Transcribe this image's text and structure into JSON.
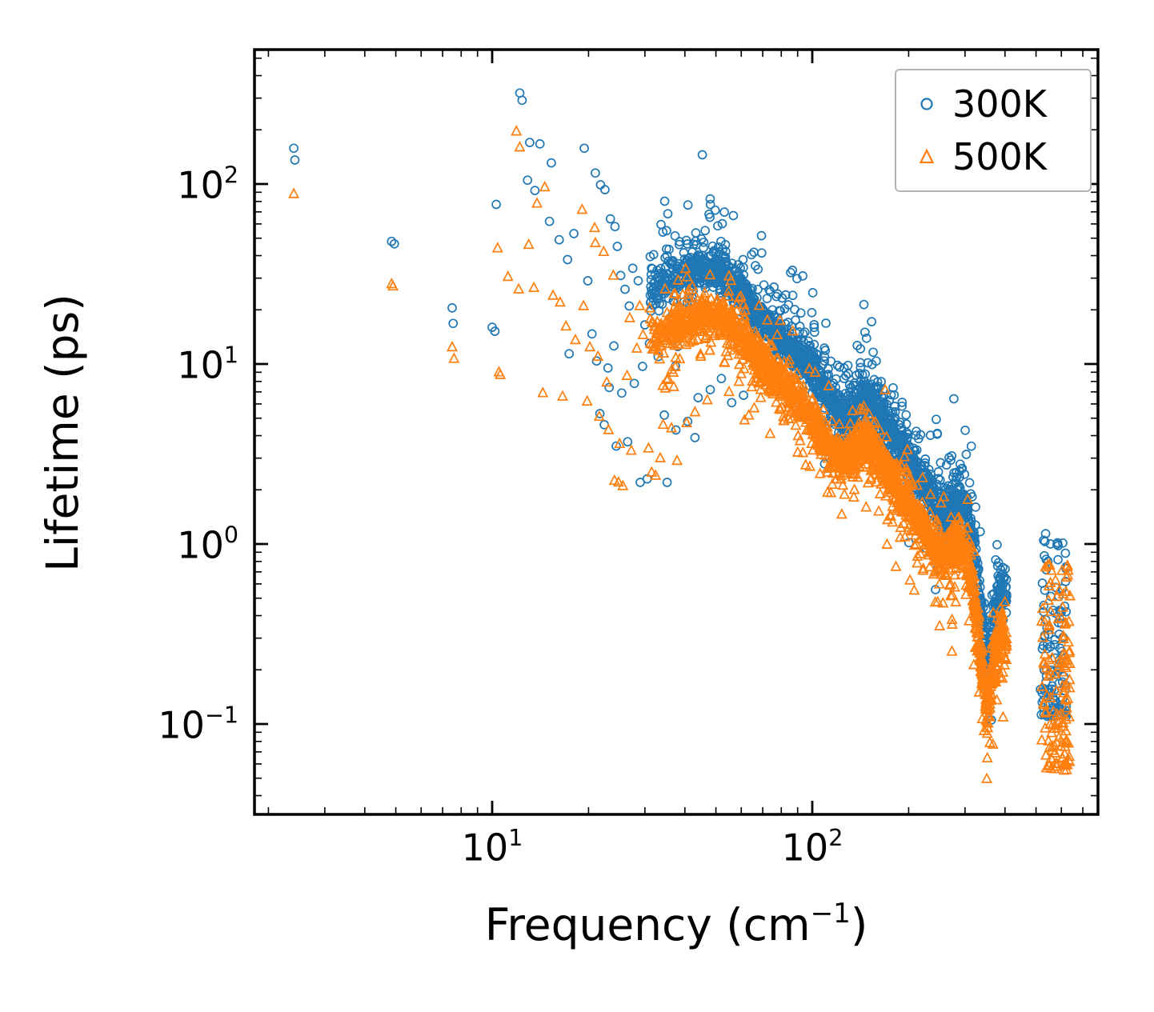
{
  "figure": {
    "background": "#ffffff",
    "frame_color": "#000000"
  },
  "axes": {
    "x": {
      "label_pre": "Frequency (cm",
      "label_sup": "−1",
      "label_post": ")",
      "scale": "log",
      "ticks": [
        {
          "value": 10,
          "base": "10",
          "exp": "1"
        },
        {
          "value": 100,
          "base": "10",
          "exp": "2"
        }
      ]
    },
    "y": {
      "label": "Lifetime (ps)",
      "scale": "log",
      "ticks": [
        {
          "value": 0.1,
          "base": "10",
          "exp": "−1"
        },
        {
          "value": 1,
          "base": "10",
          "exp": "0"
        },
        {
          "value": 10,
          "base": "10",
          "exp": "1"
        },
        {
          "value": 100,
          "base": "10",
          "exp": "2"
        }
      ]
    }
  },
  "legend": {
    "items": [
      {
        "label": "300K",
        "marker": "circle",
        "color": "#1f77b4"
      },
      {
        "label": "500K",
        "marker": "triangle",
        "color": "#ff7f0e"
      }
    ]
  },
  "chart_data": {
    "type": "scatter",
    "title": "",
    "xlabel": "Frequency (cm⁻¹)",
    "ylabel": "Lifetime (ps)",
    "xscale": "log",
    "yscale": "log",
    "xlim": [
      1.81,
      780
    ],
    "ylim": [
      0.032,
      560
    ],
    "grid": false,
    "legend_position": "upper right",
    "series": [
      {
        "name": "300K",
        "marker": "circle",
        "color": "#1f77b4",
        "seed": 7,
        "isolated_points": [
          [
            2.4,
            158
          ],
          [
            2.42,
            136
          ],
          [
            4.85,
            48
          ],
          [
            4.95,
            46.5
          ],
          [
            7.5,
            20.5
          ],
          [
            7.55,
            16.8
          ],
          [
            10.0,
            16.0
          ],
          [
            10.2,
            15.2
          ],
          [
            10.3,
            77
          ],
          [
            12.2,
            320
          ],
          [
            12.4,
            292
          ],
          [
            13.1,
            170
          ],
          [
            14.1,
            167
          ],
          [
            15.3,
            131
          ],
          [
            12.9,
            105
          ],
          [
            13.6,
            92
          ],
          [
            15.1,
            62
          ],
          [
            16.2,
            49
          ],
          [
            17.2,
            38
          ],
          [
            18.0,
            53
          ],
          [
            19.4,
            158
          ],
          [
            21.0,
            115
          ],
          [
            21.8,
            99
          ],
          [
            22.5,
            93
          ],
          [
            19.9,
            29
          ],
          [
            20.5,
            14.7
          ],
          [
            17.4,
            11.4
          ],
          [
            21.2,
            10.4
          ],
          [
            23.0,
            9.5
          ],
          [
            24.0,
            12.6
          ],
          [
            24.6,
            45
          ],
          [
            25.2,
            31
          ],
          [
            26.0,
            26
          ],
          [
            26.8,
            21
          ],
          [
            23.4,
            64
          ],
          [
            24.2,
            58
          ],
          [
            27.5,
            34
          ],
          [
            28.6,
            29
          ],
          [
            21.7,
            5.3
          ],
          [
            22.4,
            4.6
          ],
          [
            24.4,
            3.5
          ],
          [
            26.5,
            3.7
          ],
          [
            29.0,
            2.2
          ],
          [
            30.5,
            2.3
          ],
          [
            25.4,
            6.9
          ],
          [
            27.8,
            7.8
          ],
          [
            29.5,
            9.7
          ],
          [
            23.2,
            7.4
          ],
          [
            31,
            13
          ],
          [
            33,
            11
          ],
          [
            36,
            18
          ],
          [
            38,
            12.5
          ],
          [
            30,
            16.5
          ],
          [
            34.5,
            5.2
          ],
          [
            37.5,
            4.3
          ],
          [
            35.2,
            2.2
          ],
          [
            40.8,
            4.8
          ],
          [
            44,
            6.5
          ],
          [
            43,
            3.9
          ],
          [
            48,
            7.2
          ],
          [
            52,
            8.3
          ],
          [
            56,
            6.1
          ],
          [
            61,
            6.7
          ]
        ],
        "band": {
          "x_range": [
            31,
            405
          ],
          "count": 2300,
          "x_bias": 0.82,
          "core_sd": 0.055,
          "halo_sd": 0.17,
          "halo_frac": 0.22,
          "halo_shift": 0.06,
          "trend": [
            [
              31,
              26
            ],
            [
              38,
              30
            ],
            [
              46,
              34
            ],
            [
              52,
              33
            ],
            [
              58,
              27
            ],
            [
              66,
              20
            ],
            [
              74,
              15.5
            ],
            [
              82,
              13
            ],
            [
              90,
              11.5
            ],
            [
              100,
              10
            ],
            [
              108,
              7.5
            ],
            [
              118,
              5.6
            ],
            [
              128,
              5.2
            ],
            [
              140,
              6.2
            ],
            [
              152,
              6.6
            ],
            [
              163,
              5.2
            ],
            [
              178,
              4.0
            ],
            [
              195,
              3.1
            ],
            [
              212,
              2.5
            ],
            [
              230,
              1.9
            ],
            [
              250,
              1.55
            ],
            [
              268,
              1.5
            ],
            [
              285,
              1.85
            ],
            [
              300,
              1.6
            ],
            [
              315,
              1.15
            ],
            [
              330,
              0.6
            ],
            [
              342,
              0.32
            ],
            [
              352,
              0.17
            ],
            [
              362,
              0.28
            ],
            [
              375,
              0.45
            ],
            [
              388,
              0.58
            ],
            [
              398,
              0.55
            ],
            [
              405,
              0.5
            ]
          ]
        },
        "cluster": {
          "x_range": [
            515,
            622
          ],
          "y_range": [
            0.11,
            1.25
          ],
          "count": 115,
          "low_bias": 1.7
        }
      },
      {
        "name": "500K",
        "marker": "triangle",
        "color": "#ff7f0e",
        "seed": 13,
        "isolated_points": [
          [
            2.4,
            88
          ],
          [
            4.85,
            27.8
          ],
          [
            4.9,
            27
          ],
          [
            7.5,
            12.4
          ],
          [
            7.6,
            10.7
          ],
          [
            10.5,
            9.0
          ],
          [
            10.6,
            8.7
          ],
          [
            11.9,
            196
          ],
          [
            12.2,
            160
          ],
          [
            10.4,
            44
          ],
          [
            11.2,
            30.5
          ],
          [
            12.1,
            26
          ],
          [
            13.0,
            46
          ],
          [
            13.8,
            78
          ],
          [
            14.6,
            96
          ],
          [
            15.5,
            24
          ],
          [
            16.3,
            22
          ],
          [
            13.5,
            26.5
          ],
          [
            17.0,
            16.2
          ],
          [
            18.2,
            13.6
          ],
          [
            19.3,
            21
          ],
          [
            20.2,
            12.4
          ],
          [
            21.4,
            11
          ],
          [
            16.6,
            6.6
          ],
          [
            14.4,
            6.9
          ],
          [
            19.8,
            6.2
          ],
          [
            21.6,
            5.1
          ],
          [
            23.1,
            4.3
          ],
          [
            25.0,
            3.6
          ],
          [
            27.2,
            3.3
          ],
          [
            24.1,
            2.25
          ],
          [
            25.6,
            2.1
          ],
          [
            24.8,
            2.2
          ],
          [
            31.5,
            2.5
          ],
          [
            32.4,
            2.4
          ],
          [
            34.2,
            4.6
          ],
          [
            36.3,
            4.4
          ],
          [
            40.5,
            4.7
          ],
          [
            22.8,
            7.9
          ],
          [
            26.4,
            8.6
          ],
          [
            28.3,
            12.2
          ],
          [
            29.6,
            14.5
          ],
          [
            30.8,
            3.4
          ],
          [
            33.5,
            3.0
          ],
          [
            37.8,
            2.9
          ],
          [
            43,
            5.4
          ],
          [
            47,
            6.3
          ],
          [
            28.9,
            21
          ],
          [
            26.9,
            18
          ],
          [
            23.9,
            31
          ],
          [
            22.3,
            42
          ],
          [
            20.9,
            57
          ],
          [
            19.1,
            72
          ],
          [
            21.0,
            47
          ]
        ],
        "band": {
          "x_range": [
            31,
            405
          ],
          "count": 2300,
          "x_bias": 0.82,
          "core_sd": 0.055,
          "halo_sd": 0.16,
          "halo_frac": 0.2,
          "halo_shift": -0.04,
          "trend": [
            [
              31,
              14
            ],
            [
              38,
              16.5
            ],
            [
              46,
              19
            ],
            [
              52,
              18.5
            ],
            [
              58,
              15
            ],
            [
              66,
              11.5
            ],
            [
              74,
              9
            ],
            [
              82,
              7.5
            ],
            [
              90,
              6.3
            ],
            [
              100,
              4.9
            ],
            [
              108,
              3.9
            ],
            [
              118,
              3.2
            ],
            [
              128,
              3.0
            ],
            [
              140,
              3.5
            ],
            [
              152,
              3.8
            ],
            [
              163,
              3.0
            ],
            [
              178,
              2.3
            ],
            [
              195,
              1.8
            ],
            [
              212,
              1.45
            ],
            [
              230,
              1.1
            ],
            [
              250,
              0.9
            ],
            [
              268,
              0.88
            ],
            [
              285,
              1.05
            ],
            [
              300,
              0.92
            ],
            [
              315,
              0.65
            ],
            [
              330,
              0.33
            ],
            [
              342,
              0.17
            ],
            [
              352,
              0.1
            ],
            [
              362,
              0.16
            ],
            [
              375,
              0.25
            ],
            [
              388,
              0.33
            ],
            [
              398,
              0.3
            ],
            [
              405,
              0.27
            ]
          ]
        },
        "cluster": {
          "x_range": [
            520,
            640
          ],
          "y_range": [
            0.055,
            0.82
          ],
          "count": 135,
          "low_bias": 1.5
        }
      }
    ]
  }
}
